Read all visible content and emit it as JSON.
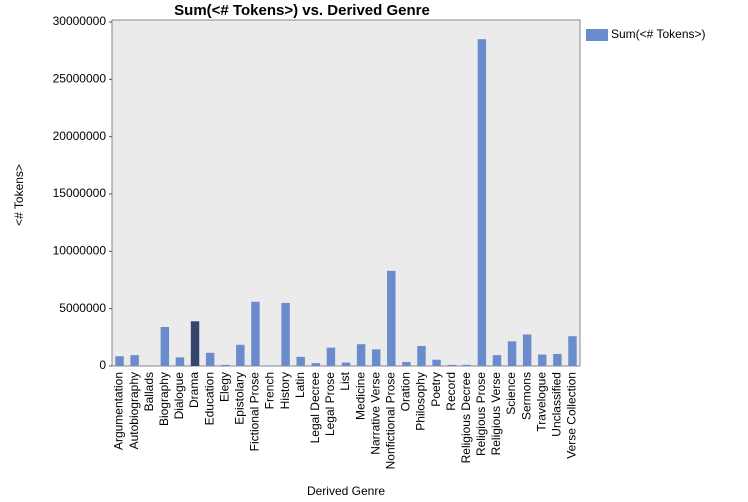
{
  "chart_data": {
    "type": "bar",
    "title": "Sum(<# Tokens>) vs. Derived Genre",
    "x_label": "Derived Genre",
    "y_label": "<# Tokens>",
    "categories": [
      "Argumentation",
      "Autobiography",
      "Ballads",
      "Biography",
      "Dialogue",
      "Drama",
      "Education",
      "Elegy",
      "Epistolary",
      "Fictional Prose",
      "French",
      "History",
      "Latin",
      "Legal Decree",
      "Legal Prose",
      "List",
      "Medicine",
      "Narrative Verse",
      "Nonfictional Prose",
      "Oration",
      "Philosophy",
      "Poetry",
      "Record",
      "Religious Decree",
      "Religious Prose",
      "Religious Verse",
      "Science",
      "Sermons",
      "Travelogue",
      "Unclassified",
      "Verse Collection"
    ],
    "series": [
      {
        "name": "Sum(<# Tokens>)",
        "color": "#6b8ccc",
        "values": [
          850000,
          950000,
          50000,
          3400000,
          750000,
          3900000,
          1150000,
          100000,
          1850000,
          5600000,
          50000,
          5500000,
          800000,
          250000,
          1600000,
          300000,
          1900000,
          1450000,
          8300000,
          350000,
          1750000,
          550000,
          100000,
          100000,
          28500000,
          950000,
          2150000,
          2750000,
          1000000,
          1050000,
          2600000
        ],
        "bar_colors": [
          "#6b8ccc",
          "#6b8ccc",
          "#6b8ccc",
          "#6b8ccc",
          "#6b8ccc",
          "#34456e",
          "#6b8ccc",
          "#6b8ccc",
          "#6b8ccc",
          "#6b8ccc",
          "#6b8ccc",
          "#6b8ccc",
          "#6b8ccc",
          "#6b8ccc",
          "#6b8ccc",
          "#6b8ccc",
          "#6b8ccc",
          "#6b8ccc",
          "#6b8ccc",
          "#6b8ccc",
          "#6b8ccc",
          "#6b8ccc",
          "#6b8ccc",
          "#6b8ccc",
          "#6b8ccc",
          "#6b8ccc",
          "#6b8ccc",
          "#6b8ccc",
          "#6b8ccc",
          "#6b8ccc",
          "#6b8ccc"
        ]
      }
    ],
    "ylim": [
      0,
      30000000
    ],
    "yticks": [
      0,
      5000000,
      10000000,
      15000000,
      20000000,
      25000000,
      30000000
    ],
    "grid": false,
    "legend": "right"
  }
}
